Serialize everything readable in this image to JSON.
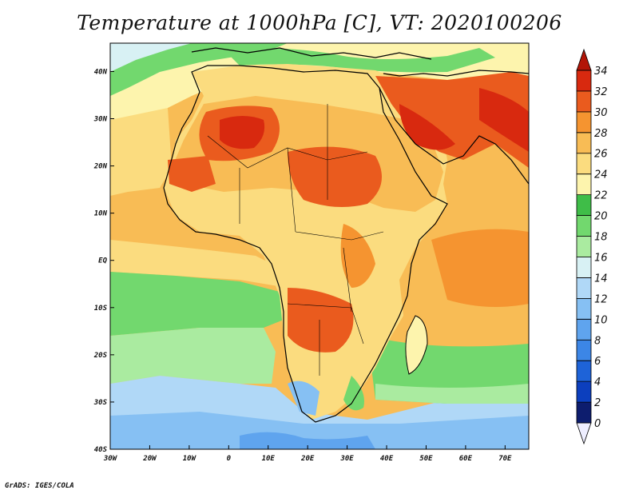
{
  "title": "Temperature at 1000hPa [C], VT: 2020100206",
  "credit": "GrADS: IGES/COLA",
  "map": {
    "lon_range": [
      -30,
      76
    ],
    "lat_range": [
      -40,
      46
    ],
    "x_ticks": [
      {
        "value": -30,
        "label": "30W"
      },
      {
        "value": -20,
        "label": "20W"
      },
      {
        "value": -10,
        "label": "10W"
      },
      {
        "value": 0,
        "label": "0"
      },
      {
        "value": 10,
        "label": "10E"
      },
      {
        "value": 20,
        "label": "20E"
      },
      {
        "value": 30,
        "label": "30E"
      },
      {
        "value": 40,
        "label": "40E"
      },
      {
        "value": 50,
        "label": "50E"
      },
      {
        "value": 60,
        "label": "60E"
      },
      {
        "value": 70,
        "label": "70E"
      }
    ],
    "y_ticks": [
      {
        "value": 40,
        "label": "40N"
      },
      {
        "value": 30,
        "label": "30N"
      },
      {
        "value": 20,
        "label": "20N"
      },
      {
        "value": 10,
        "label": "10N"
      },
      {
        "value": 0,
        "label": "EQ"
      },
      {
        "value": -10,
        "label": "10S"
      },
      {
        "value": -20,
        "label": "20S"
      },
      {
        "value": -30,
        "label": "30S"
      },
      {
        "value": -40,
        "label": "40S"
      }
    ]
  },
  "colorbar": {
    "levels": [
      "0",
      "2",
      "4",
      "6",
      "8",
      "10",
      "12",
      "14",
      "16",
      "18",
      "20",
      "22",
      "24",
      "26",
      "28",
      "30",
      "32",
      "34"
    ],
    "colors": [
      "#eeeeff",
      "#0d1d6e",
      "#0c3fbe",
      "#1e63d8",
      "#3c86e6",
      "#5fa4ee",
      "#86c0f3",
      "#b0d8f7",
      "#d8f1f4",
      "#aaeba0",
      "#72d86e",
      "#3fbd48",
      "#fdf4ad",
      "#fbdc7f",
      "#f8bc55",
      "#f59430",
      "#ea5b1e",
      "#d8290f",
      "#b21508"
    ]
  },
  "colors": {
    "ocean_cool": "#86c0f3",
    "land_hot": "#ea5b1e",
    "coast": "#000000"
  }
}
